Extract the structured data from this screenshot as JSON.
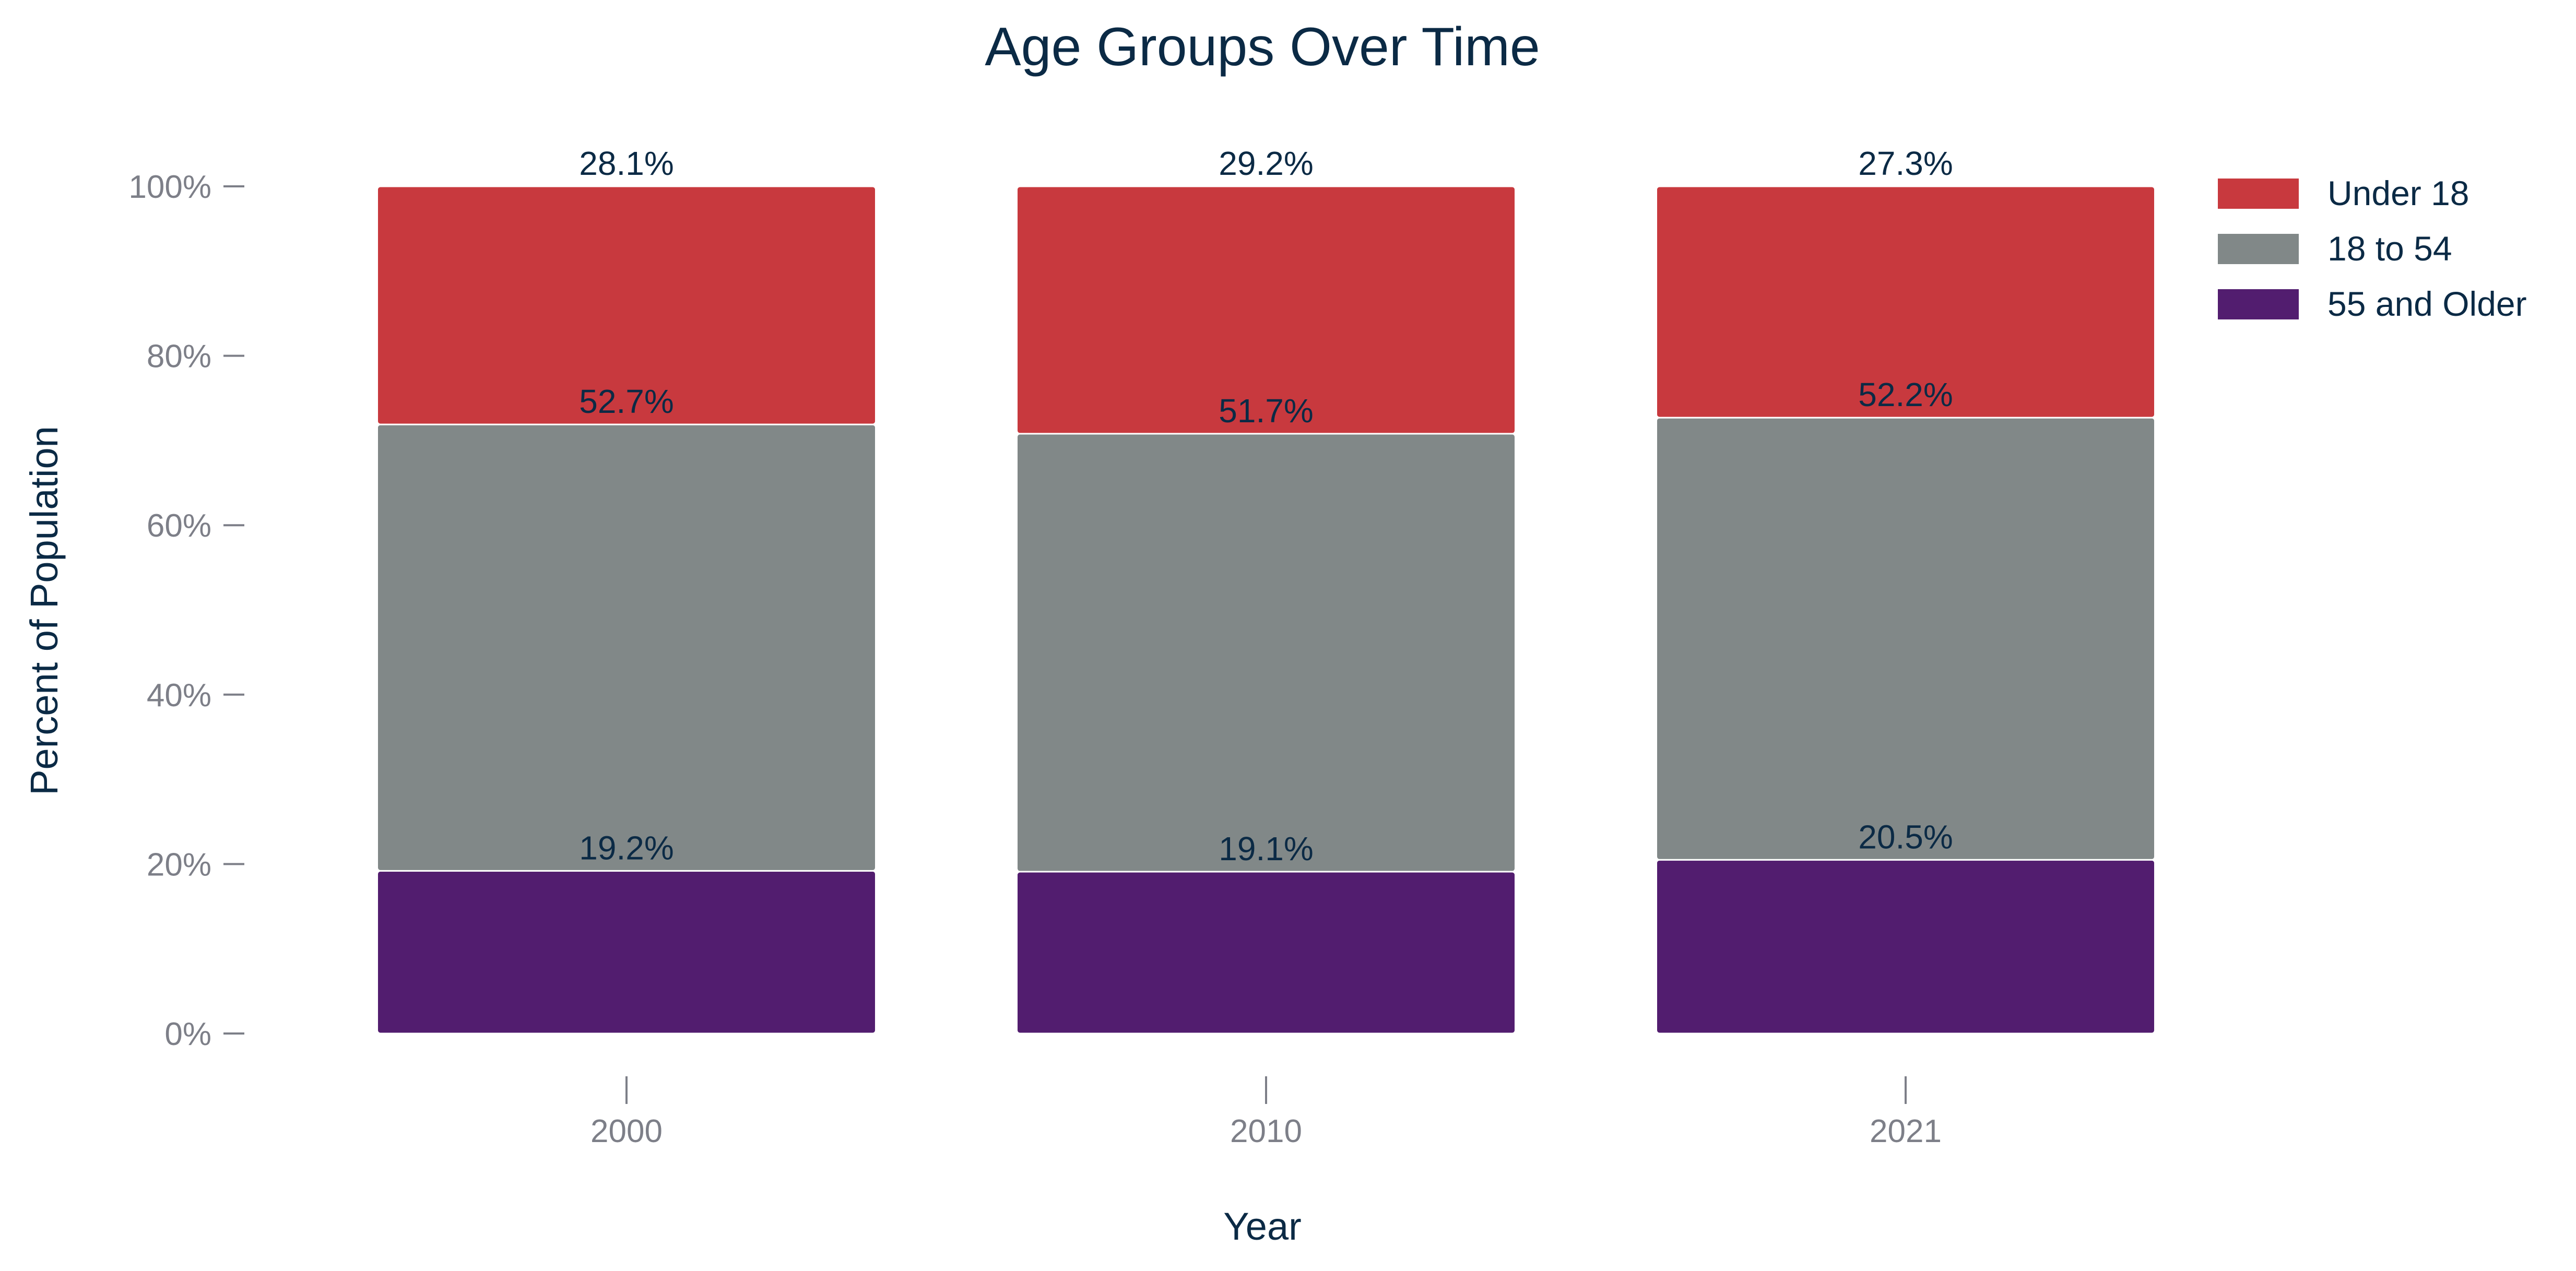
{
  "chart_data": {
    "type": "bar",
    "stacked": true,
    "title": "Age Groups Over Time",
    "xlabel": "Year",
    "ylabel": "Percent of Population",
    "categories": [
      "2000",
      "2010",
      "2021"
    ],
    "ylim": [
      0,
      100
    ],
    "y_ticks": [
      0,
      20,
      40,
      60,
      80,
      100
    ],
    "y_tick_labels": [
      "0%",
      "20%",
      "40%",
      "60%",
      "80%",
      "100%"
    ],
    "legend_position": "top-right",
    "grid": false,
    "series": [
      {
        "name": "55 and Older",
        "color": "#521d6f",
        "values": [
          19.2,
          19.1,
          20.5
        ],
        "labels": [
          "19.2%",
          "19.1%",
          "20.5%"
        ]
      },
      {
        "name": "18 to 54",
        "color": "#818888",
        "values": [
          52.7,
          51.7,
          52.2
        ],
        "labels": [
          "52.7%",
          "51.7%",
          "52.2%"
        ]
      },
      {
        "name": "Under 18",
        "color": "#c8393e",
        "values": [
          28.1,
          29.2,
          27.3
        ],
        "labels": [
          "28.1%",
          "29.2%",
          "27.3%"
        ]
      }
    ],
    "legend_order": [
      "Under 18",
      "18 to 54",
      "55 and Older"
    ]
  }
}
